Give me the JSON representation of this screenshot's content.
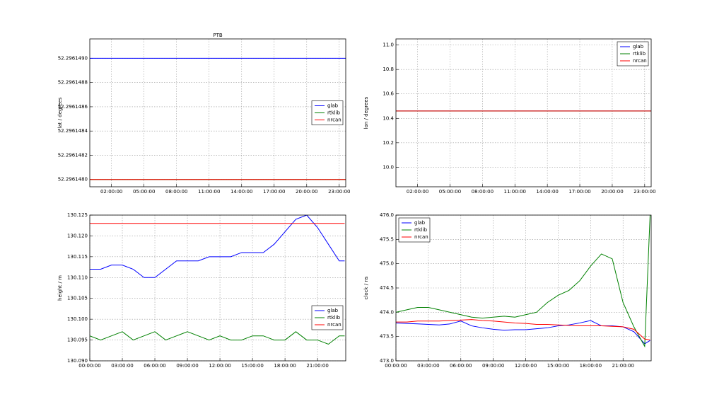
{
  "chart_data": [
    {
      "type": "line",
      "title": "PTB",
      "y_label": "lat / degrees",
      "legend": "center right",
      "grid": true,
      "x": [
        0,
        23.6
      ],
      "xlim": [
        0,
        23.6
      ],
      "xticks": [
        {
          "value": 2,
          "label": "02:00:00"
        },
        {
          "value": 5,
          "label": "05:00:00"
        },
        {
          "value": 8,
          "label": "08:00:00"
        },
        {
          "value": 11,
          "label": "11:00:00"
        },
        {
          "value": 14,
          "label": "14:00:00"
        },
        {
          "value": 17,
          "label": "17:00:00"
        },
        {
          "value": 20,
          "label": "20:00:00"
        },
        {
          "value": 23,
          "label": "23:00:00"
        }
      ],
      "ylim": [
        52.29614794,
        52.29614916
      ],
      "yticks": [
        {
          "value": 52.296148,
          "label": "52.2961480"
        },
        {
          "value": 52.2961482,
          "label": "52.2961482"
        },
        {
          "value": 52.2961484,
          "label": "52.2961484"
        },
        {
          "value": 52.2961486,
          "label": "52.2961486"
        },
        {
          "value": 52.2961488,
          "label": "52.2961488"
        },
        {
          "value": 52.296149,
          "label": "52.2961490"
        }
      ],
      "series": [
        {
          "name": "glab",
          "color": "#0000ff",
          "values": [
            52.296149,
            52.296149
          ]
        },
        {
          "name": "rtklib",
          "color": "#008000",
          "values": [
            52.296148,
            52.296148
          ]
        },
        {
          "name": "nrcan",
          "color": "#ff0000",
          "values": [
            52.296148,
            52.296148
          ]
        }
      ]
    },
    {
      "type": "line",
      "y_label": "lon / degrees",
      "legend": "upper right",
      "grid": true,
      "x": [
        0,
        23.6
      ],
      "xlim": [
        0,
        23.6
      ],
      "xticks": [
        {
          "value": 2,
          "label": "02:00:00"
        },
        {
          "value": 5,
          "label": "05:00:00"
        },
        {
          "value": 8,
          "label": "08:00:00"
        },
        {
          "value": 11,
          "label": "11:00:00"
        },
        {
          "value": 14,
          "label": "14:00:00"
        },
        {
          "value": 17,
          "label": "17:00:00"
        },
        {
          "value": 20,
          "label": "20:00:00"
        },
        {
          "value": 23,
          "label": "23:00:00"
        }
      ],
      "ylim": [
        9.84,
        11.05
      ],
      "yticks": [
        {
          "value": 10,
          "label": "10.0"
        },
        10.2,
        10.4,
        10.6,
        10.8,
        {
          "value": 11,
          "label": "11.0"
        }
      ],
      "series": [
        {
          "name": "glab",
          "color": "#0000ff",
          "values": [
            10.46,
            10.46
          ]
        },
        {
          "name": "rtklib",
          "color": "#008000",
          "values": [
            10.46,
            10.46
          ]
        },
        {
          "name": "nrcan",
          "color": "#ff0000",
          "values": [
            10.46,
            10.46
          ]
        }
      ]
    },
    {
      "type": "line",
      "y_label": "height / m",
      "legend": "center right",
      "grid": true,
      "x": [
        0,
        1,
        2,
        3,
        4,
        5,
        6,
        7,
        8,
        9,
        10,
        11,
        12,
        13,
        14,
        15,
        16,
        17,
        18,
        19,
        20,
        21,
        22,
        23,
        23.5
      ],
      "xlim": [
        0,
        23.6
      ],
      "xticks": [
        {
          "value": 0,
          "label": "00:00:00"
        },
        {
          "value": 3,
          "label": "03:00:00"
        },
        {
          "value": 6,
          "label": "06:00:00"
        },
        {
          "value": 9,
          "label": "09:00:00"
        },
        {
          "value": 12,
          "label": "12:00:00"
        },
        {
          "value": 15,
          "label": "15:00:00"
        },
        {
          "value": 18,
          "label": "18:00:00"
        },
        {
          "value": 21,
          "label": "21:00:00"
        }
      ],
      "ylim": [
        130.09,
        130.125
      ],
      "yticks": [
        {
          "value": 130.09,
          "label": "130.090"
        },
        130.095,
        {
          "value": 130.1,
          "label": "130.100"
        },
        130.105,
        {
          "value": 130.11,
          "label": "130.110"
        },
        130.115,
        {
          "value": 130.12,
          "label": "130.120"
        },
        130.125
      ],
      "series": [
        {
          "name": "glab",
          "color": "#0000ff",
          "values": [
            130.112,
            130.112,
            130.113,
            130.113,
            130.112,
            130.11,
            130.11,
            130.112,
            130.114,
            130.114,
            130.114,
            130.115,
            130.115,
            130.115,
            130.116,
            130.116,
            130.116,
            130.118,
            130.121,
            130.124,
            130.125,
            130.122,
            130.118,
            130.114,
            130.114
          ]
        },
        {
          "name": "rtklib",
          "color": "#008000",
          "values": [
            130.096,
            130.095,
            130.096,
            130.097,
            130.095,
            130.096,
            130.097,
            130.095,
            130.096,
            130.097,
            130.096,
            130.095,
            130.096,
            130.095,
            130.095,
            130.096,
            130.096,
            130.095,
            130.095,
            130.097,
            130.095,
            130.095,
            130.094,
            130.096,
            130.096
          ]
        },
        {
          "name": "nrcan",
          "color": "#ff0000",
          "values": [
            130.123,
            130.123,
            130.123,
            130.123,
            130.123,
            130.123,
            130.123,
            130.123,
            130.123,
            130.123,
            130.123,
            130.123,
            130.123,
            130.123,
            130.123,
            130.123,
            130.123,
            130.123,
            130.123,
            130.123,
            130.123,
            130.123,
            130.123,
            130.123,
            130.123
          ]
        }
      ]
    },
    {
      "type": "line",
      "y_label": "clock / ns",
      "legend": "upper left",
      "grid": true,
      "x": [
        0,
        1,
        2,
        3,
        4,
        5,
        6,
        7,
        8,
        9,
        10,
        11,
        12,
        13,
        14,
        15,
        16,
        17,
        18,
        19,
        20,
        21,
        22,
        23,
        23.5
      ],
      "xlim": [
        0,
        23.6
      ],
      "xticks": [
        {
          "value": 0,
          "label": "00:00:00"
        },
        {
          "value": 3,
          "label": "03:00:00"
        },
        {
          "value": 6,
          "label": "06:00:00"
        },
        {
          "value": 9,
          "label": "09:00:00"
        },
        {
          "value": 12,
          "label": "12:00:00"
        },
        {
          "value": 15,
          "label": "15:00:00"
        },
        {
          "value": 18,
          "label": "18:00:00"
        },
        {
          "value": 21,
          "label": "21:00:00"
        }
      ],
      "ylim": [
        473,
        476
      ],
      "yticks": [
        {
          "value": 473,
          "label": "473.0"
        },
        473.5,
        {
          "value": 474,
          "label": "474.0"
        },
        474.5,
        {
          "value": 475,
          "label": "475.0"
        },
        475.5,
        {
          "value": 476,
          "label": "476.0"
        }
      ],
      "series": [
        {
          "name": "glab",
          "color": "#0000ff",
          "values": [
            473.78,
            473.77,
            473.76,
            473.75,
            473.74,
            473.76,
            473.82,
            473.72,
            473.68,
            473.65,
            473.63,
            473.64,
            473.64,
            473.66,
            473.68,
            473.72,
            473.74,
            473.78,
            473.83,
            473.72,
            473.72,
            473.7,
            473.6,
            473.35,
            473.42
          ]
        },
        {
          "name": "rtklib",
          "color": "#008000",
          "values": [
            474.0,
            474.05,
            474.1,
            474.1,
            474.05,
            474.0,
            473.95,
            473.9,
            473.88,
            473.9,
            473.92,
            473.9,
            473.95,
            474.0,
            474.2,
            474.35,
            474.45,
            474.65,
            474.95,
            475.2,
            475.1,
            474.2,
            473.7,
            473.3,
            476.0
          ]
        },
        {
          "name": "nrcan",
          "color": "#ff0000",
          "values": [
            473.8,
            473.8,
            473.82,
            473.82,
            473.82,
            473.83,
            473.84,
            473.85,
            473.83,
            473.82,
            473.8,
            473.78,
            473.77,
            473.75,
            473.75,
            473.74,
            473.73,
            473.72,
            473.72,
            473.72,
            473.71,
            473.7,
            473.65,
            473.45,
            473.43
          ]
        }
      ]
    }
  ]
}
